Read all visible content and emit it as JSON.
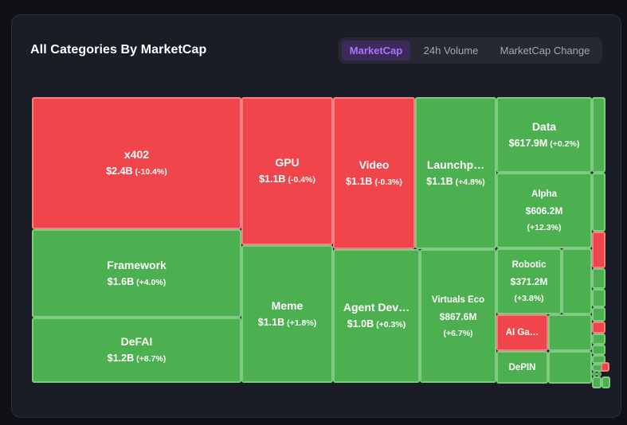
{
  "header": {
    "title": "All Categories By MarketCap"
  },
  "tabs": [
    {
      "label": "MarketCap",
      "active": true
    },
    {
      "label": "24h Volume",
      "active": false
    },
    {
      "label": "MarketCap Change",
      "active": false
    }
  ],
  "colors": {
    "negative": "#f0454a",
    "positive": "#4caf50",
    "accent": "#a972ff"
  },
  "chart_data": {
    "type": "treemap",
    "title": "All Categories By MarketCap",
    "metric": "MarketCap",
    "items": [
      {
        "id": "x402",
        "name": "x402",
        "value_label": "$2.4B",
        "change_label": "(-10.4%)",
        "value": 2.4,
        "change": -10.4,
        "layout": "inline"
      },
      {
        "id": "framework",
        "name": "Framework",
        "value_label": "$1.6B",
        "change_label": "(+4.0%)",
        "value": 1.6,
        "change": 4.0,
        "layout": "inline"
      },
      {
        "id": "defai",
        "name": "DeFAI",
        "value_label": "$1.2B",
        "change_label": "(+8.7%)",
        "value": 1.2,
        "change": 8.7,
        "layout": "inline"
      },
      {
        "id": "gpu",
        "name": "GPU",
        "value_label": "$1.1B",
        "change_label": "(-0.4%)",
        "value": 1.1,
        "change": -0.4,
        "layout": "inline"
      },
      {
        "id": "meme",
        "name": "Meme",
        "value_label": "$1.1B",
        "change_label": "(+1.8%)",
        "value": 1.1,
        "change": 1.8,
        "layout": "inline"
      },
      {
        "id": "video",
        "name": "Video",
        "value_label": "$1.1B",
        "change_label": "(-0.3%)",
        "value": 1.1,
        "change": -0.3,
        "layout": "inline"
      },
      {
        "id": "agentdev",
        "name": "Agent Dev…",
        "value_label": "$1.0B",
        "change_label": "(+0.3%)",
        "value": 1.0,
        "change": 0.3,
        "layout": "inline"
      },
      {
        "id": "launchpad",
        "name": "Launchp…",
        "value_label": "$1.1B",
        "change_label": "(+4.8%)",
        "value": 1.1,
        "change": 4.8,
        "layout": "inline"
      },
      {
        "id": "virtuals",
        "name": "Virtuals Eco",
        "value_label": "$867.6M",
        "change_label": "(+6.7%)",
        "value": 0.8676,
        "change": 6.7,
        "layout": "stack"
      },
      {
        "id": "data",
        "name": "Data",
        "value_label": "$617.9M",
        "change_label": "(+0.2%)",
        "value": 0.6179,
        "change": 0.2,
        "layout": "inline"
      },
      {
        "id": "alpha",
        "name": "Alpha",
        "value_label": "$606.2M",
        "change_label": "(+12.3%)",
        "value": 0.6062,
        "change": 12.3,
        "layout": "stack"
      },
      {
        "id": "robotic",
        "name": "Robotic",
        "value_label": "$371.2M",
        "change_label": "(+3.8%)",
        "value": 0.3712,
        "change": 3.8,
        "layout": "stack"
      },
      {
        "id": "aigaming",
        "name": "AI Ga…",
        "value": 0.2,
        "change": -1.0,
        "layout": "name"
      },
      {
        "id": "depin",
        "name": "DePIN",
        "value": 0.18,
        "change": 1.0,
        "layout": "name"
      },
      {
        "id": "s1",
        "value": 0.1,
        "change": 1.0
      },
      {
        "id": "s2",
        "value": 0.09,
        "change": 1.0
      },
      {
        "id": "s3",
        "value": 0.05,
        "change": 1.0
      },
      {
        "id": "s4",
        "value": 0.05,
        "change": 1.0
      },
      {
        "id": "s5",
        "value": 0.06,
        "change": 1.0
      },
      {
        "id": "s6",
        "value": 0.04,
        "change": 1.0
      },
      {
        "id": "s7",
        "value": 0.04,
        "change": -1.0
      },
      {
        "id": "s8",
        "value": 0.03,
        "change": 1.0
      },
      {
        "id": "s9",
        "value": 0.03,
        "change": 1.0
      },
      {
        "id": "s10",
        "value": 0.02,
        "change": 1.0
      },
      {
        "id": "s11",
        "value": 0.02,
        "change": 1.0
      },
      {
        "id": "s12",
        "value": 0.015,
        "change": 1.0
      },
      {
        "id": "s13",
        "value": 0.015,
        "change": 1.0
      },
      {
        "id": "s14",
        "value": 0.06,
        "change": 1.0
      },
      {
        "id": "s15",
        "value": 0.012,
        "change": -1.0
      },
      {
        "id": "s16",
        "value": 0.012,
        "change": -1.0
      },
      {
        "id": "s17",
        "value": 0.01,
        "change": 1.0
      },
      {
        "id": "s18",
        "value": 0.01,
        "change": 1.0
      },
      {
        "id": "s19",
        "value": 0.05,
        "change": 1.0
      },
      {
        "id": "s20",
        "value": 0.05,
        "change": 1.0
      },
      {
        "id": "s21",
        "value": 0.04,
        "change": 1.0
      },
      {
        "id": "s22",
        "value": 0.04,
        "change": 1.0
      }
    ]
  }
}
